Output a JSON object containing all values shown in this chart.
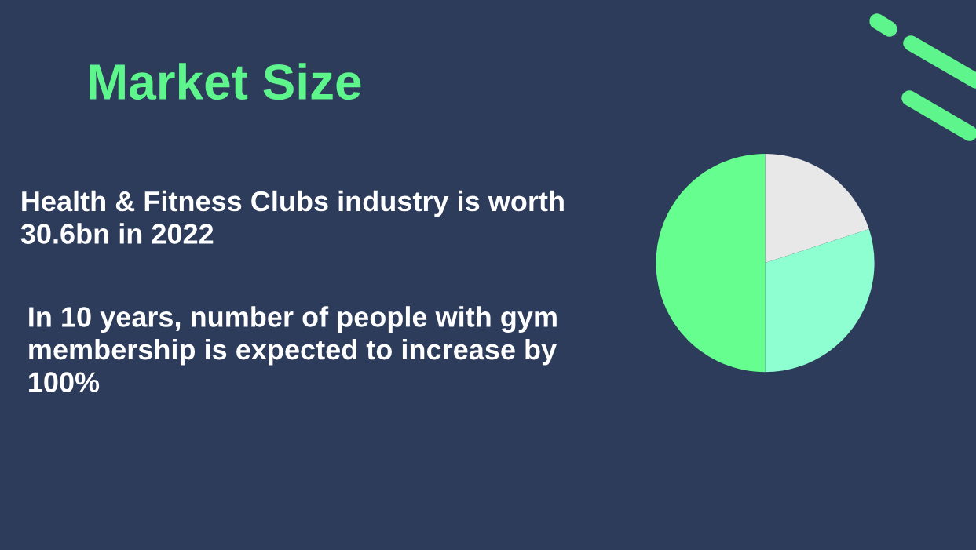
{
  "chart_data": {
    "type": "pie",
    "title": "Market Size",
    "categories": [
      null,
      null,
      null
    ],
    "values": [
      20,
      30,
      50
    ],
    "colors": [
      "#e8e8e8",
      "#8effd0",
      "#66ff8f"
    ],
    "annotations": [
      "Health & Fitness Clubs industry is worth 30.6bn in 2022",
      "In 10 years, number of people with gym membership is expected to increase by 100%"
    ],
    "legend": false
  }
}
